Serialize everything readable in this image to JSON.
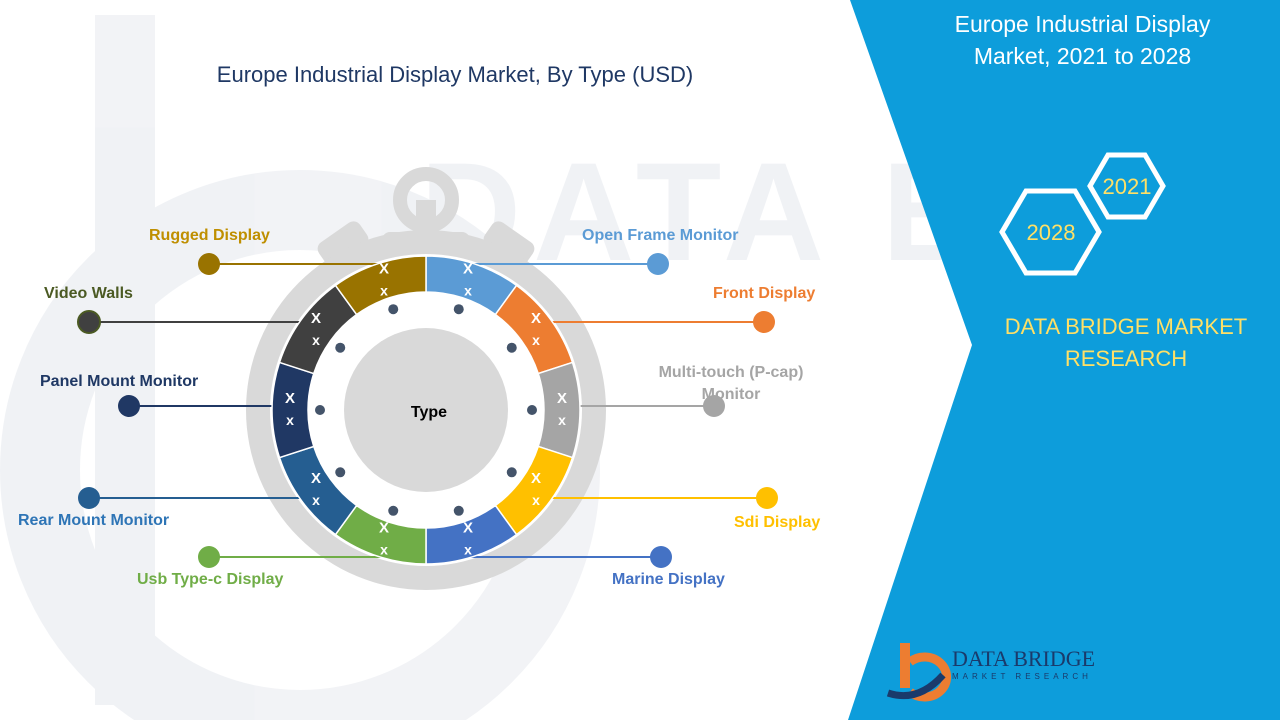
{
  "chart_data": {
    "type": "pie",
    "title": "Europe Industrial Display Market, By Type (USD)",
    "center_label": "Type",
    "segments": [
      {
        "name": "Open Frame Monitor",
        "value_text": [
          "X",
          "x"
        ],
        "color": "#5b9bd5",
        "label_color": "#5b9bd5"
      },
      {
        "name": "Front Display",
        "value_text": [
          "X",
          "x"
        ],
        "color": "#ed7d31",
        "label_color": "#ed7d31"
      },
      {
        "name": "Multi-touch (P-cap) Monitor",
        "value_text": [
          "X",
          "x"
        ],
        "color": "#a5a5a5",
        "label_color": "#a5a5a5"
      },
      {
        "name": "Sdi Display",
        "value_text": [
          "X",
          "x"
        ],
        "color": "#ffc000",
        "label_color": "#ffc000"
      },
      {
        "name": "Marine Display",
        "value_text": [
          "X",
          "x"
        ],
        "color": "#4472c4",
        "label_color": "#4472c4"
      },
      {
        "name": "Usb Type-c Display",
        "value_text": [
          "X",
          "x"
        ],
        "color": "#70ad47",
        "label_color": "#70ad47"
      },
      {
        "name": "Rear Mount Monitor",
        "value_text": [
          "X",
          "x"
        ],
        "color": "#255e91",
        "label_color": "#2e75b6"
      },
      {
        "name": "Panel Mount Monitor",
        "value_text": [
          "X",
          "x"
        ],
        "color": "#203864",
        "label_color": "#1f3864"
      },
      {
        "name": "Video Walls",
        "value_text": [
          "X",
          "x"
        ],
        "color": "#404040",
        "label_color": "#4b5a23"
      },
      {
        "name": "Rugged Display",
        "value_text": [
          "X",
          "x"
        ],
        "color": "#997300",
        "label_color": "#bf8f00"
      }
    ]
  },
  "panel": {
    "title_line1": "Europe Industrial Display",
    "title_line2": "Market, 2021 to 2028",
    "year_start": "2021",
    "year_end": "2028",
    "brand_line1": "DATA BRIDGE MARKET",
    "brand_line2": "RESEARCH",
    "panel_color": "#0d9ddb",
    "accent_color": "#ffe066"
  },
  "footer": {
    "logo_text": "DATA BRIDGE",
    "logo_subtext": "MARKET RESEARCH"
  }
}
